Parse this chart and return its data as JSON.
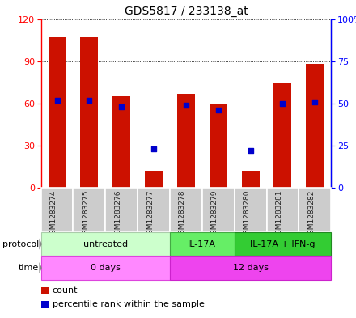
{
  "title": "GDS5817 / 233138_at",
  "samples": [
    "GSM1283274",
    "GSM1283275",
    "GSM1283276",
    "GSM1283277",
    "GSM1283278",
    "GSM1283279",
    "GSM1283280",
    "GSM1283281",
    "GSM1283282"
  ],
  "counts": [
    107,
    107,
    65,
    12,
    67,
    60,
    12,
    75,
    88
  ],
  "percentiles": [
    52,
    52,
    48,
    23,
    49,
    46,
    22,
    50,
    51
  ],
  "left_ylim": [
    0,
    120
  ],
  "right_ylim": [
    0,
    100
  ],
  "left_yticks": [
    0,
    30,
    60,
    90,
    120
  ],
  "right_yticks": [
    0,
    25,
    50,
    75,
    100
  ],
  "right_yticklabels": [
    "0",
    "25",
    "50",
    "75",
    "100%"
  ],
  "bar_color": "#cc1100",
  "dot_color": "#0000cc",
  "bar_width": 0.55,
  "protocol_groups": [
    {
      "label": "untreated",
      "start": 0,
      "end": 3,
      "color": "#ccffcc",
      "edge_color": "#aaccaa"
    },
    {
      "label": "IL-17A",
      "start": 4,
      "end": 5,
      "color": "#66ee66",
      "edge_color": "#44aa44"
    },
    {
      "label": "IL-17A + IFN-g",
      "start": 6,
      "end": 8,
      "color": "#33cc33",
      "edge_color": "#228822"
    }
  ],
  "time_groups": [
    {
      "label": "0 days",
      "start": 0,
      "end": 3,
      "color": "#ff88ff",
      "edge_color": "#dd44dd"
    },
    {
      "label": "12 days",
      "start": 4,
      "end": 8,
      "color": "#ee44ee",
      "edge_color": "#cc22cc"
    }
  ],
  "legend_count_label": "count",
  "legend_pct_label": "percentile rank within the sample",
  "grid_linestyle": ":"
}
